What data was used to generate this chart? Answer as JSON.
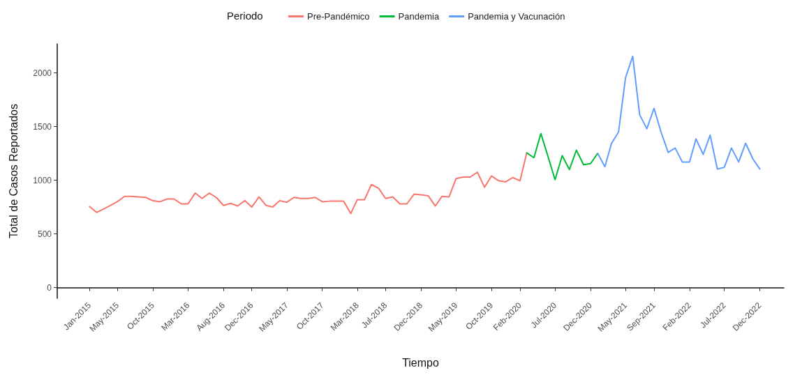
{
  "chart_data": {
    "type": "line",
    "xlabel": "Tiempo",
    "ylabel": "Total de Casos Reportados",
    "legend_title": "Periodo",
    "legend": "top",
    "grid": false,
    "marker": "none",
    "line_style": "solid",
    "xlim": [
      "2014-08-15",
      "2023-03-15"
    ],
    "ylim": [
      -100,
      2270
    ],
    "yticks": [
      0,
      500,
      1000,
      1500,
      2000
    ],
    "xticks": [
      {
        "value": "2015-01",
        "label": "Jan-2015"
      },
      {
        "value": "2015-05",
        "label": "May-2015"
      },
      {
        "value": "2015-10",
        "label": "Oct-2015"
      },
      {
        "value": "2016-03",
        "label": "Mar-2016"
      },
      {
        "value": "2016-08",
        "label": "Aug-2016"
      },
      {
        "value": "2016-12",
        "label": "Dec-2016"
      },
      {
        "value": "2017-05",
        "label": "May-2017"
      },
      {
        "value": "2017-10",
        "label": "Oct-2017"
      },
      {
        "value": "2018-03",
        "label": "Mar-2018"
      },
      {
        "value": "2018-07",
        "label": "Jul-2018"
      },
      {
        "value": "2018-12",
        "label": "Dec-2018"
      },
      {
        "value": "2019-05",
        "label": "May-2019"
      },
      {
        "value": "2019-10",
        "label": "Oct-2019"
      },
      {
        "value": "2020-02",
        "label": "Feb-2020"
      },
      {
        "value": "2020-07",
        "label": "Jul-2020"
      },
      {
        "value": "2020-12",
        "label": "Dec-2020"
      },
      {
        "value": "2021-05",
        "label": "May-2021"
      },
      {
        "value": "2021-09",
        "label": "Sep-2021"
      },
      {
        "value": "2022-02",
        "label": "Feb-2022"
      },
      {
        "value": "2022-07",
        "label": "Jul-2022"
      },
      {
        "value": "2022-12",
        "label": "Dec-2022"
      }
    ],
    "series": [
      {
        "name": "Pre-Pandémico",
        "color": "#f8766d",
        "x": [
          "2015-01",
          "2015-02",
          "2015-03",
          "2015-04",
          "2015-05",
          "2015-06",
          "2015-07",
          "2015-08",
          "2015-09",
          "2015-10",
          "2015-11",
          "2015-12",
          "2016-01",
          "2016-02",
          "2016-03",
          "2016-04",
          "2016-05",
          "2016-06",
          "2016-07",
          "2016-08",
          "2016-09",
          "2016-10",
          "2016-11",
          "2016-12",
          "2017-01",
          "2017-02",
          "2017-03",
          "2017-04",
          "2017-05",
          "2017-06",
          "2017-07",
          "2017-08",
          "2017-09",
          "2017-10",
          "2017-11",
          "2017-12",
          "2018-01",
          "2018-02",
          "2018-03",
          "2018-04",
          "2018-05",
          "2018-06",
          "2018-07",
          "2018-08",
          "2018-09",
          "2018-10",
          "2018-11",
          "2018-12",
          "2019-01",
          "2019-02",
          "2019-03",
          "2019-04",
          "2019-05",
          "2019-06",
          "2019-07",
          "2019-08",
          "2019-09",
          "2019-10",
          "2019-11",
          "2019-12",
          "2020-01",
          "2020-02",
          "2020-03"
        ],
        "values": [
          755,
          700,
          730,
          765,
          800,
          850,
          850,
          845,
          840,
          810,
          800,
          825,
          825,
          780,
          780,
          880,
          830,
          880,
          840,
          765,
          785,
          760,
          810,
          750,
          845,
          765,
          750,
          810,
          795,
          840,
          830,
          830,
          840,
          800,
          805,
          805,
          805,
          690,
          818,
          818,
          960,
          925,
          830,
          845,
          780,
          780,
          870,
          865,
          855,
          760,
          850,
          845,
          1015,
          1030,
          1030,
          1075,
          935,
          1040,
          995,
          985,
          1025,
          995,
          1255
        ]
      },
      {
        "name": "Pandemia",
        "color": "#00ba38",
        "x": [
          "2020-03",
          "2020-04",
          "2020-05",
          "2020-06",
          "2020-07",
          "2020-08",
          "2020-09",
          "2020-10",
          "2020-11",
          "2020-12",
          "2021-01"
        ],
        "values": [
          1255,
          1210,
          1435,
          1220,
          1005,
          1230,
          1100,
          1280,
          1145,
          1155,
          1250
        ]
      },
      {
        "name": "Pandemia y Vacunación",
        "color": "#619cff",
        "x": [
          "2021-01",
          "2021-02",
          "2021-03",
          "2021-04",
          "2021-05",
          "2021-06",
          "2021-07",
          "2021-08",
          "2021-09",
          "2021-10",
          "2021-11",
          "2021-12",
          "2022-01",
          "2022-02",
          "2022-03",
          "2022-04",
          "2022-05",
          "2022-06",
          "2022-07",
          "2022-08",
          "2022-09",
          "2022-10",
          "2022-11",
          "2022-12"
        ],
        "values": [
          1250,
          1125,
          1340,
          1450,
          1955,
          2155,
          1610,
          1480,
          1670,
          1450,
          1260,
          1300,
          1170,
          1170,
          1385,
          1240,
          1420,
          1105,
          1120,
          1300,
          1170,
          1345,
          1200,
          1105
        ]
      }
    ]
  }
}
